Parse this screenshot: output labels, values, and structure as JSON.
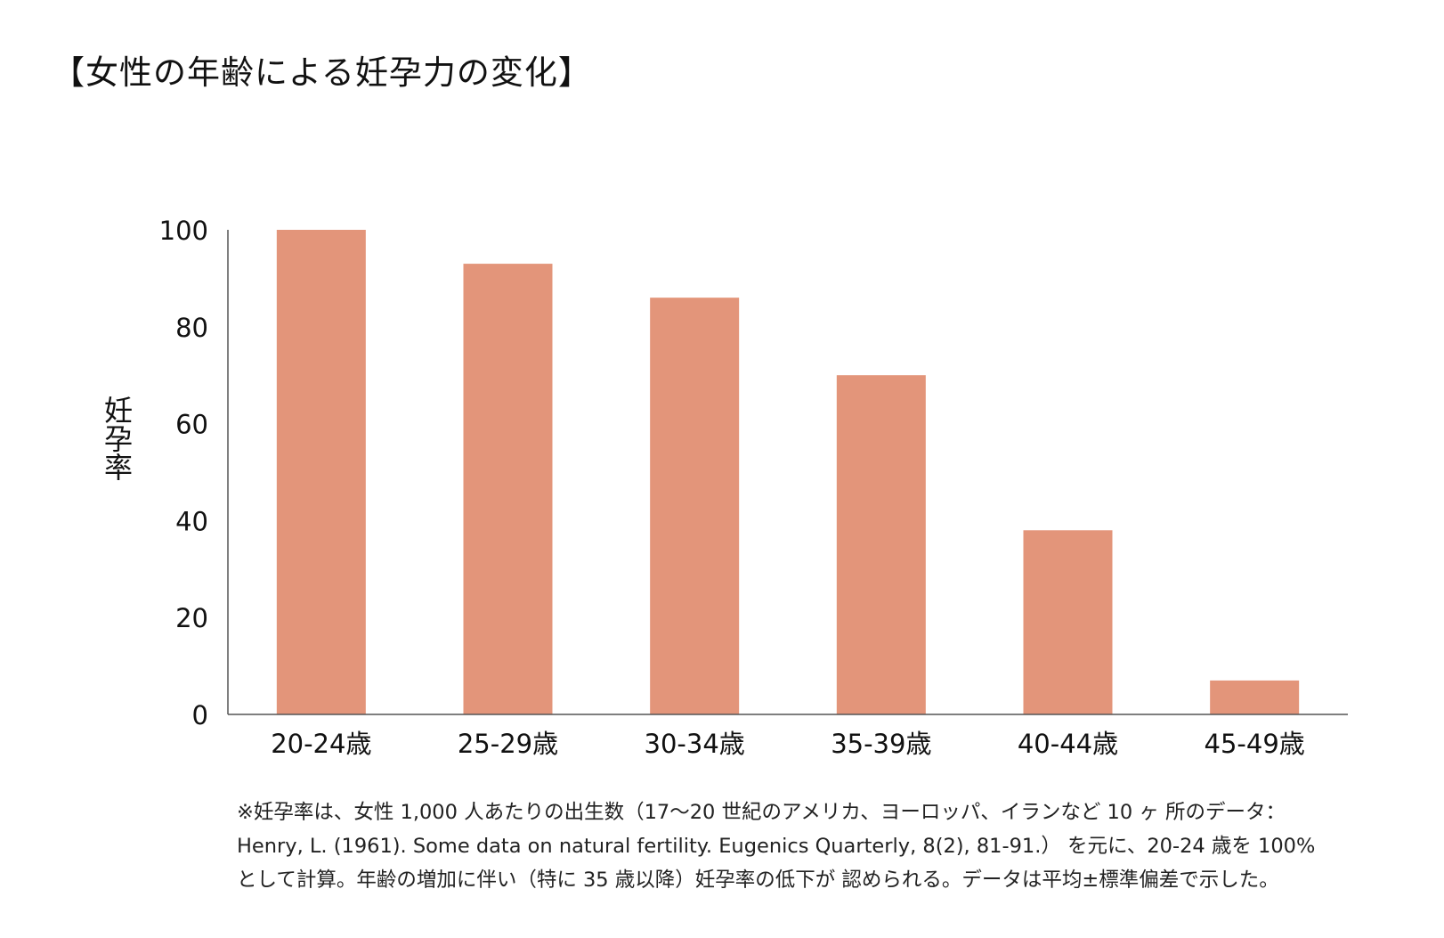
{
  "chart_data": {
    "type": "bar",
    "title": "【女性の年齢による妊孕力の変化】",
    "ylabel": "妊孕率",
    "xlabel": "",
    "categories": [
      "20-24歳",
      "25-29歳",
      "30-34歳",
      "35-39歳",
      "40-44歳",
      "45-49歳"
    ],
    "values": [
      100,
      93,
      86,
      70,
      38,
      7
    ],
    "ylim": [
      0,
      100
    ],
    "yticks": [
      0,
      20,
      40,
      60,
      80,
      100
    ],
    "grid": false,
    "legend": "none",
    "bar_color": "#E3957A",
    "axis_color": "#555555"
  },
  "note": "※妊孕率は、女性 1,000 人あたりの出生数（17〜20 世紀のアメリカ、ヨーロッパ、イランなど 10 ヶ 所のデータ：Henry, L. (1961). Some data on natural fertility. Eugenics Quarterly, 8(2), 81-91.） を元に、20-24 歳を 100%として計算。年齢の増加に伴い（特に 35 歳以降）妊孕率の低下が 認められる。データは平均±標準偏差で示した。"
}
